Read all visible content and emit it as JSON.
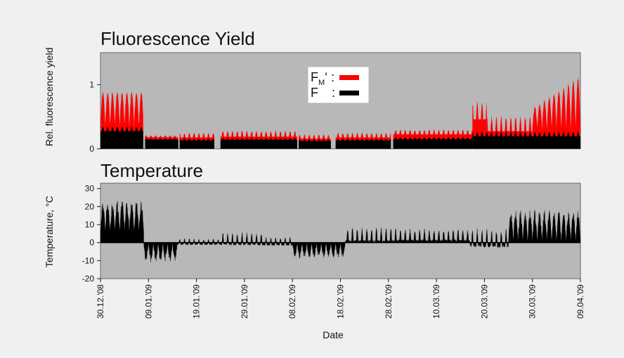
{
  "chart_data": [
    {
      "type": "area",
      "title": "Fluorescence Yield",
      "ylabel": "Rel. fluorescence yield",
      "xlabel": "",
      "ylim": [
        0,
        1.5
      ],
      "yticks": [
        "0",
        "1"
      ],
      "legend": {
        "placement": "top-center",
        "entries": [
          {
            "label_main": "F",
            "label_sub": "M",
            "label_suffix": "‘ :",
            "color": "#ff0000"
          },
          {
            "label_main": "F",
            "label_sub": "",
            "label_suffix": " :",
            "color": "#000000"
          }
        ]
      },
      "series": [
        {
          "name": "FM'",
          "color": "#ff0000",
          "segments": [
            {
              "start": 0.0,
              "end": 8.9,
              "base": 0.85,
              "amp": 0.35,
              "period": 1.0
            },
            {
              "start": 9.3,
              "end": 16.2,
              "base": 0.19,
              "amp": 0.03,
              "period": 1.0
            },
            {
              "start": 16.5,
              "end": 23.7,
              "base": 0.2,
              "amp": 0.08,
              "period": 1.0
            },
            {
              "start": 25.0,
              "end": 41.0,
              "base": 0.22,
              "amp": 0.1,
              "period": 1.0
            },
            {
              "start": 41.3,
              "end": 48.0,
              "base": 0.18,
              "amp": 0.07,
              "period": 1.0
            },
            {
              "start": 49.0,
              "end": 60.5,
              "base": 0.2,
              "amp": 0.08,
              "period": 1.0
            },
            {
              "start": 61.0,
              "end": 77.5,
              "base": 0.25,
              "amp": 0.08,
              "period": 1.0
            },
            {
              "start": 77.5,
              "end": 80.5,
              "base": 0.55,
              "amp": 0.3,
              "period": 1.0
            },
            {
              "start": 80.5,
              "end": 90.0,
              "base": 0.35,
              "amp": 0.25,
              "period": 1.0
            },
            {
              "start": 90.0,
              "end": 100.0,
              "base": 0.55,
              "amp": 0.5,
              "period": 1.0
            }
          ]
        },
        {
          "name": "F",
          "color": "#000000",
          "segments": [
            {
              "start": 0.0,
              "end": 8.9,
              "base": 0.3,
              "amp": 0.08,
              "period": 1.0
            },
            {
              "start": 9.3,
              "end": 16.2,
              "base": 0.15,
              "amp": 0.02,
              "period": 1.0
            },
            {
              "start": 16.5,
              "end": 23.7,
              "base": 0.14,
              "amp": 0.03,
              "period": 1.0
            },
            {
              "start": 25.0,
              "end": 41.0,
              "base": 0.15,
              "amp": 0.03,
              "period": 1.0
            },
            {
              "start": 41.3,
              "end": 48.0,
              "base": 0.13,
              "amp": 0.03,
              "period": 1.0
            },
            {
              "start": 49.0,
              "end": 60.5,
              "base": 0.14,
              "amp": 0.03,
              "period": 1.0
            },
            {
              "start": 61.0,
              "end": 77.5,
              "base": 0.16,
              "amp": 0.03,
              "period": 1.0
            },
            {
              "start": 77.5,
              "end": 100.0,
              "base": 0.22,
              "amp": 0.08,
              "period": 1.0
            }
          ]
        }
      ]
    },
    {
      "type": "area",
      "title": "Temperature",
      "ylabel": "Temperature, °C",
      "xlabel": "Date",
      "ylim": [
        -20,
        33
      ],
      "yticks": [
        "30",
        "20",
        "10",
        "0",
        "-10",
        "-20"
      ],
      "xticks": [
        "30.12.'08",
        "09.01.'09",
        "19.01.'09",
        "29.01.'09",
        "08.02.'09",
        "18.02.'09",
        "28.02.'09",
        "10.03.'09",
        "20.03.'09",
        "30.03.'09",
        "09.04.'09"
      ],
      "xlim_days": [
        0,
        100
      ],
      "series": [
        {
          "name": "Temperature",
          "color": "#000000",
          "segments": [
            {
              "start": 0.0,
              "end": 9.0,
              "mean": 12,
              "amp": 14
            },
            {
              "start": 9.0,
              "end": 16.0,
              "mean": -6,
              "amp": 10
            },
            {
              "start": 16.0,
              "end": 25.0,
              "mean": 0,
              "amp": 3
            },
            {
              "start": 25.0,
              "end": 34.0,
              "mean": 1,
              "amp": 6
            },
            {
              "start": 34.0,
              "end": 40.0,
              "mean": 0,
              "amp": 4
            },
            {
              "start": 40.0,
              "end": 51.0,
              "mean": -2,
              "amp": 8
            },
            {
              "start": 51.0,
              "end": 62.0,
              "mean": 3,
              "amp": 7
            },
            {
              "start": 62.0,
              "end": 77.0,
              "mean": 3,
              "amp": 6
            },
            {
              "start": 77.0,
              "end": 85.0,
              "mean": 1,
              "amp": 9
            },
            {
              "start": 85.0,
              "end": 100.0,
              "mean": 10,
              "amp": 15
            }
          ]
        }
      ]
    }
  ]
}
